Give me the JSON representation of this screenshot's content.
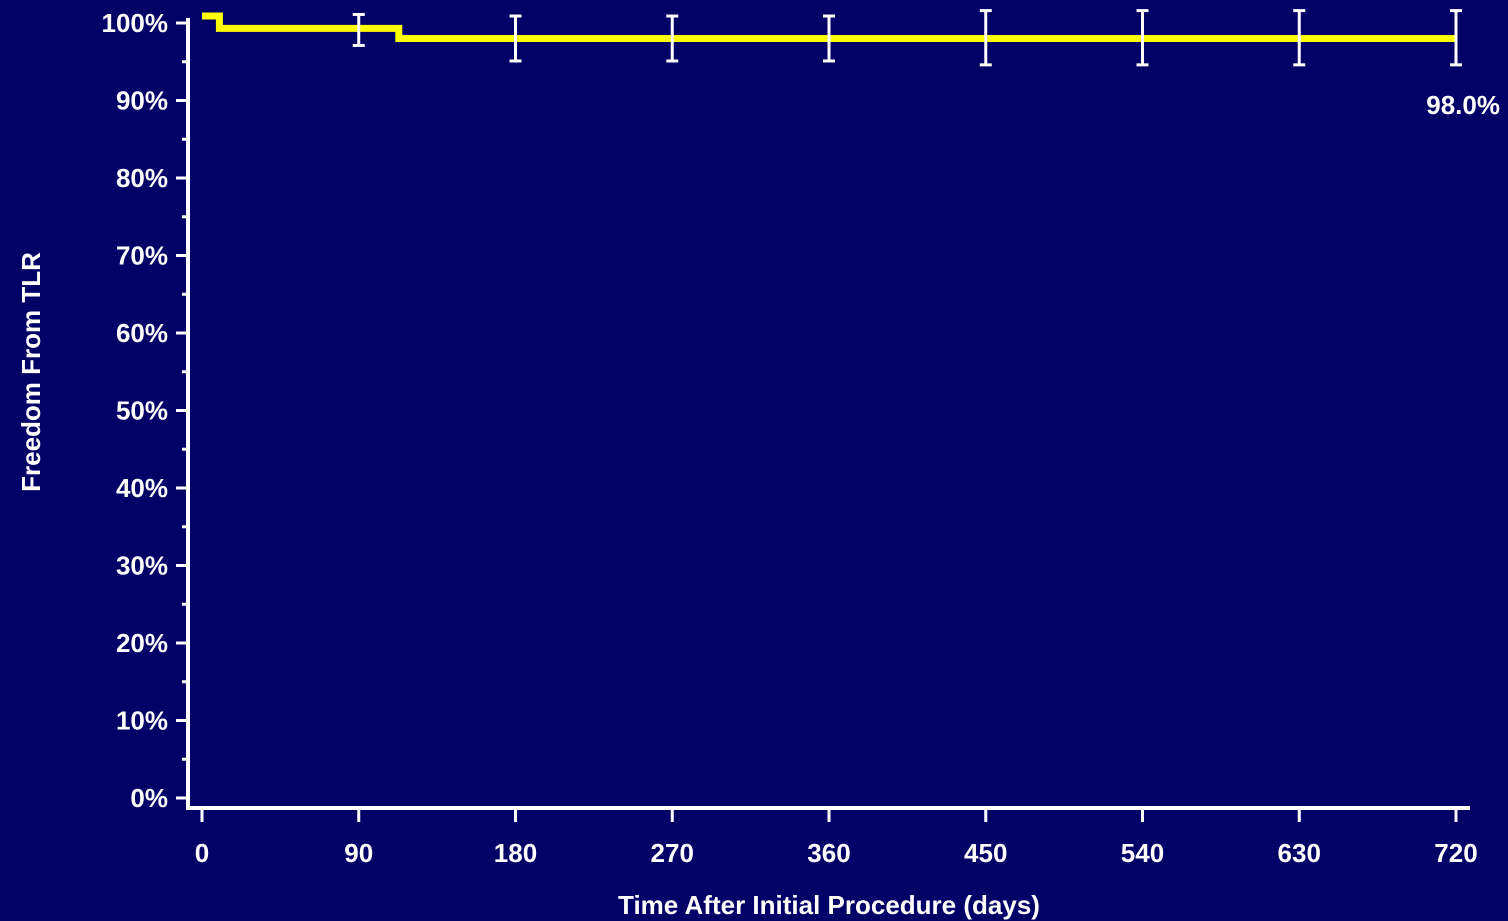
{
  "chart_data": {
    "type": "line",
    "title": "",
    "xlabel": "Time After Initial Procedure (days)",
    "ylabel": "Freedom From TLR",
    "xlim": [
      0,
      720
    ],
    "ylim": [
      0,
      100
    ],
    "x_ticks": [
      0,
      90,
      180,
      270,
      360,
      450,
      540,
      630,
      720
    ],
    "x_tick_labels": [
      "0",
      "90",
      "180",
      "270",
      "360",
      "450",
      "540",
      "630",
      "720"
    ],
    "y_ticks": [
      0,
      10,
      20,
      30,
      40,
      50,
      60,
      70,
      80,
      90,
      100
    ],
    "y_tick_labels": [
      "0%",
      "10%",
      "20%",
      "30%",
      "40%",
      "50%",
      "60%",
      "70%",
      "80%",
      "90%",
      "100%"
    ],
    "y_minor_tick_step": 5,
    "grid": false,
    "series": [
      {
        "color": "#ffff00",
        "steps": [
          {
            "x": 0,
            "y": 100.9
          },
          {
            "x": 10,
            "y": 99.3
          },
          {
            "x": 113,
            "y": 98.0
          },
          {
            "x": 720,
            "y": 98.0
          }
        ]
      }
    ],
    "error_bars": {
      "color": "#ffffff",
      "points": [
        {
          "x": 90,
          "low": 97.1,
          "high": 101.1
        },
        {
          "x": 180,
          "low": 95.1,
          "high": 100.9
        },
        {
          "x": 270,
          "low": 95.1,
          "high": 100.9
        },
        {
          "x": 360,
          "low": 95.1,
          "high": 100.9
        },
        {
          "x": 450,
          "low": 94.6,
          "high": 101.6
        },
        {
          "x": 540,
          "low": 94.6,
          "high": 101.6
        },
        {
          "x": 630,
          "low": 94.6,
          "high": 101.6
        },
        {
          "x": 720,
          "low": 94.6,
          "high": 101.6
        }
      ]
    },
    "annotations": [
      {
        "text": "98.0%",
        "x": 720,
        "y": 98.0
      }
    ],
    "colors": {
      "background": "#000066",
      "axis": "#ffffff",
      "text": "#ffffff"
    }
  }
}
